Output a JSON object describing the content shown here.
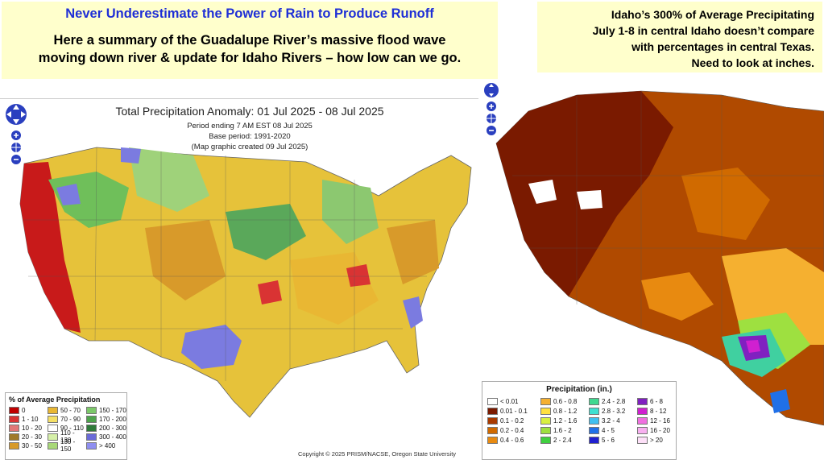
{
  "banner": {
    "headline": "Never Underestimate the Power of Rain to Produce Runoff",
    "sub_line1": "Here a summary of the Guadalupe River’s massive flood wave",
    "sub_line2": "moving down river & update for Idaho Rivers – how low can we go."
  },
  "note": {
    "line1": "Idaho’s 300% of Average Precipitating",
    "line2": "July 1-8 in central Idaho doesn’t compare",
    "line3": "with percentages in central Texas.",
    "line4": "Need to look at inches."
  },
  "left_map": {
    "title": "Total Precipitation Anomaly: 01 Jul 2025 - 08 Jul 2025",
    "line1": "Period ending 7 AM EST 08 Jul 2025",
    "line2": "Base period: 1991-2020",
    "line3": "(Map graphic created 09 Jul 2025)",
    "copyright": "Copyright © 2025 PRISM/NACSE, Oregon State University",
    "legend": {
      "title": "% of Average Precipitation",
      "items": [
        {
          "label": "0",
          "color": "#c00000"
        },
        {
          "label": "1 - 10",
          "color": "#d93333"
        },
        {
          "label": "10 - 20",
          "color": "#e27777"
        },
        {
          "label": "20 - 30",
          "color": "#a07a2a"
        },
        {
          "label": "30 - 50",
          "color": "#d79a2a"
        },
        {
          "label": "50 - 70",
          "color": "#e9b733"
        },
        {
          "label": "70 - 90",
          "color": "#f5e066"
        },
        {
          "label": "90 - 110",
          "color": "#ffffff"
        },
        {
          "label": "110 - 130",
          "color": "#d6f0a8"
        },
        {
          "label": "130 - 150",
          "color": "#a8d878"
        },
        {
          "label": "150 - 170",
          "color": "#7cc86a"
        },
        {
          "label": "170 - 200",
          "color": "#4ea34c"
        },
        {
          "label": "200 - 300",
          "color": "#2f7a3a"
        },
        {
          "label": "300 - 400",
          "color": "#6b6bd8"
        },
        {
          "label": "> 400",
          "color": "#8f8ff0"
        }
      ]
    }
  },
  "right_map": {
    "legend": {
      "title": "Precipitation (in.)",
      "items": [
        {
          "label": "< 0.01",
          "color": "#ffffff"
        },
        {
          "label": "0.01 - 0.1",
          "color": "#7a1a00"
        },
        {
          "label": "0.1 - 0.2",
          "color": "#a83a00"
        },
        {
          "label": "0.2 - 0.4",
          "color": "#d06a00"
        },
        {
          "label": "0.4 - 0.6",
          "color": "#e88a10"
        },
        {
          "label": "0.6 - 0.8",
          "color": "#f5b030"
        },
        {
          "label": "0.8 - 1.2",
          "color": "#ffe040"
        },
        {
          "label": "1.2 - 1.6",
          "color": "#d8f040"
        },
        {
          "label": "1.6 - 2",
          "color": "#9ee040"
        },
        {
          "label": "2 - 2.4",
          "color": "#40d040"
        },
        {
          "label": "2.4 - 2.8",
          "color": "#40d890"
        },
        {
          "label": "2.8 - 3.2",
          "color": "#40e0d0"
        },
        {
          "label": "3.2 - 4",
          "color": "#40c0f0"
        },
        {
          "label": "4 - 5",
          "color": "#2070e8"
        },
        {
          "label": "5 - 6",
          "color": "#2020d0"
        },
        {
          "label": "6 - 8",
          "color": "#8020c0"
        },
        {
          "label": "8 - 12",
          "color": "#d020d0"
        },
        {
          "label": "12 - 16",
          "color": "#f070e0"
        },
        {
          "label": "16 - 20",
          "color": "#f8b0f0"
        },
        {
          "label": "> 20",
          "color": "#fde0f8"
        }
      ]
    }
  }
}
